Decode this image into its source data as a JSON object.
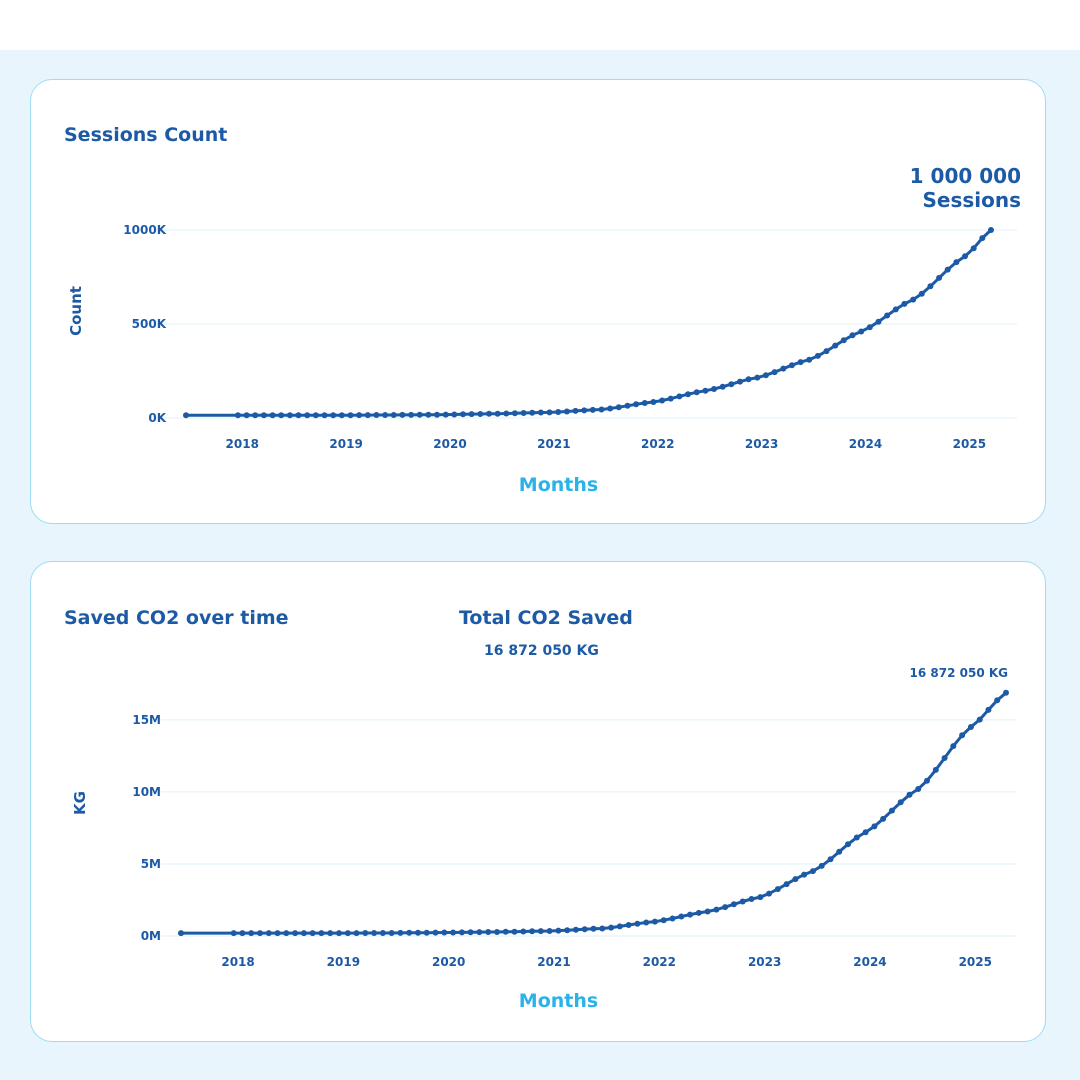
{
  "colors": {
    "line": "#1d5aa6",
    "accent": "#2cb1e8",
    "grid": "#dff2fb",
    "background": "#e8f5fc",
    "card_border": "#9fdcf3"
  },
  "sessions_card": {
    "title": "Sessions Count",
    "big_value": "1 000 000",
    "big_value_unit": "Sessions"
  },
  "co2_card": {
    "title": "Saved CO2 over time",
    "total_title": "Total CO2 Saved",
    "total_value": "16 872 050 KG",
    "end_label": "16 872 050 KG"
  },
  "chart_data": [
    {
      "type": "line",
      "title": "Sessions Count",
      "xlabel": "Months",
      "ylabel": "Count",
      "ylim": [
        0,
        1000000
      ],
      "yticks": [
        0,
        500000,
        1000000
      ],
      "ytick_labels": [
        "0K",
        "500K",
        "1000K"
      ],
      "xticks": [
        "2018",
        "2019",
        "2020",
        "2021",
        "2022",
        "2023",
        "2024",
        "2025"
      ],
      "grid": true,
      "x_start": "2017-07",
      "x_end": "2025-04",
      "x": [
        "2017-07",
        "2018-01",
        "2018-07",
        "2019-01",
        "2019-07",
        "2020-01",
        "2020-07",
        "2021-01",
        "2021-07",
        "2022-01",
        "2022-07",
        "2023-01",
        "2023-07",
        "2024-01",
        "2024-07",
        "2025-01",
        "2025-04"
      ],
      "values": [
        15000,
        15000,
        15000,
        15000,
        16000,
        18000,
        23000,
        30000,
        45000,
        85000,
        145000,
        215000,
        310000,
        460000,
        630000,
        860000,
        1000000
      ]
    },
    {
      "type": "line",
      "title": "Saved CO2 over time",
      "xlabel": "Months",
      "ylabel": "KG",
      "ylim": [
        0,
        17000000
      ],
      "yticks": [
        0,
        5000000,
        10000000,
        15000000
      ],
      "ytick_labels": [
        "0M",
        "5M",
        "10M",
        "15M"
      ],
      "xticks": [
        "2018",
        "2019",
        "2020",
        "2021",
        "2022",
        "2023",
        "2024",
        "2025"
      ],
      "grid": true,
      "x_start": "2017-07",
      "x_end": "2025-05",
      "x": [
        "2017-07",
        "2018-01",
        "2018-07",
        "2019-01",
        "2019-07",
        "2020-01",
        "2020-07",
        "2021-01",
        "2021-07",
        "2022-01",
        "2022-07",
        "2023-01",
        "2023-07",
        "2024-01",
        "2024-07",
        "2025-01",
        "2025-05"
      ],
      "values": [
        200000,
        200000,
        200000,
        200000,
        210000,
        240000,
        280000,
        350000,
        520000,
        1000000,
        1700000,
        2700000,
        4500000,
        7200000,
        10200000,
        14500000,
        16872050
      ]
    }
  ]
}
